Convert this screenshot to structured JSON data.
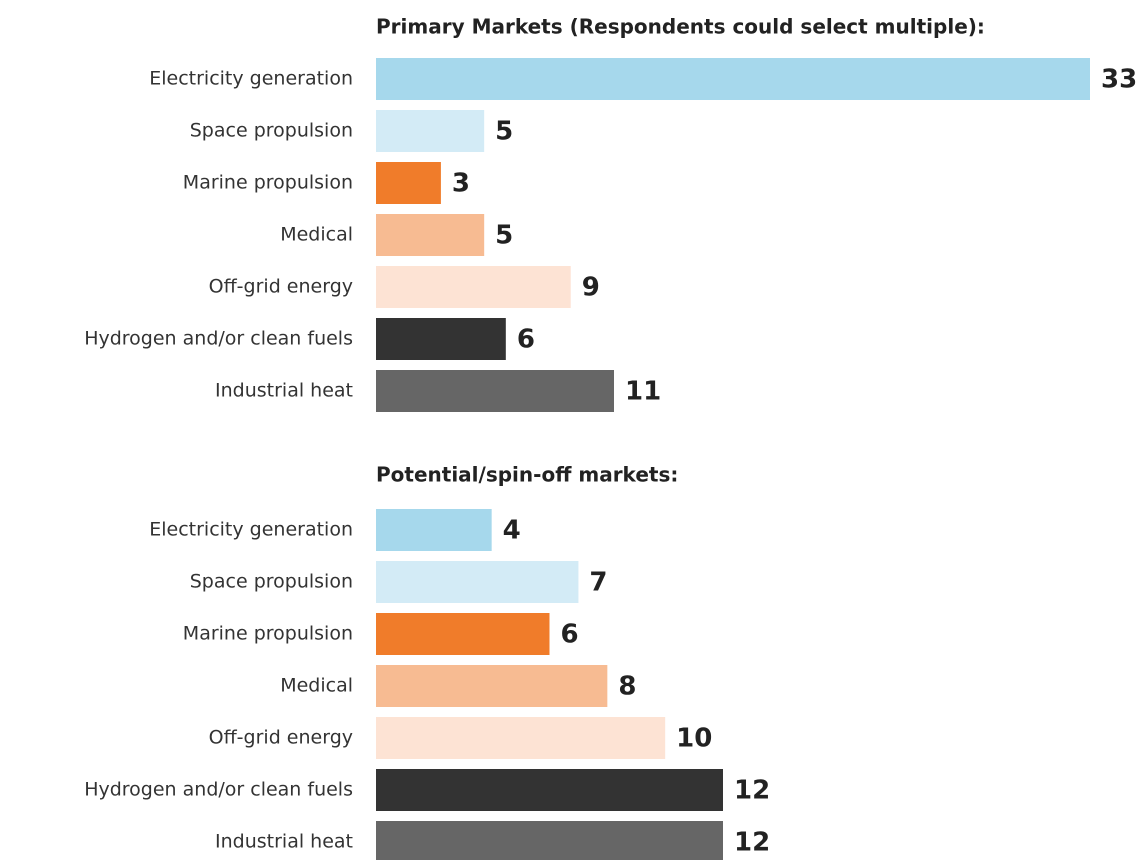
{
  "chart_data": [
    {
      "type": "bar",
      "title": "Primary Markets (Respondents could select multiple):",
      "categories": [
        "Electricity generation",
        "Space propulsion",
        "Marine propulsion",
        "Medical",
        "Off-grid energy",
        "Hydrogen and/or clean fuels",
        "Industrial heat"
      ],
      "values": [
        33,
        5,
        3,
        5,
        9,
        6,
        11
      ],
      "colors": [
        "#a6d8ec",
        "#d3ebf6",
        "#f07c2a",
        "#f7bb92",
        "#fde3d4",
        "#333333",
        "#666666"
      ]
    },
    {
      "type": "bar",
      "title": "Potential/spin-off markets:",
      "categories": [
        "Electricity generation",
        "Space propulsion",
        "Marine propulsion",
        "Medical",
        "Off-grid energy",
        "Hydrogen and/or clean fuels",
        "Industrial heat"
      ],
      "values": [
        4,
        7,
        6,
        8,
        10,
        12,
        12
      ],
      "colors": [
        "#a6d8ec",
        "#d3ebf6",
        "#f07c2a",
        "#f7bb92",
        "#fde3d4",
        "#333333",
        "#666666"
      ]
    }
  ]
}
